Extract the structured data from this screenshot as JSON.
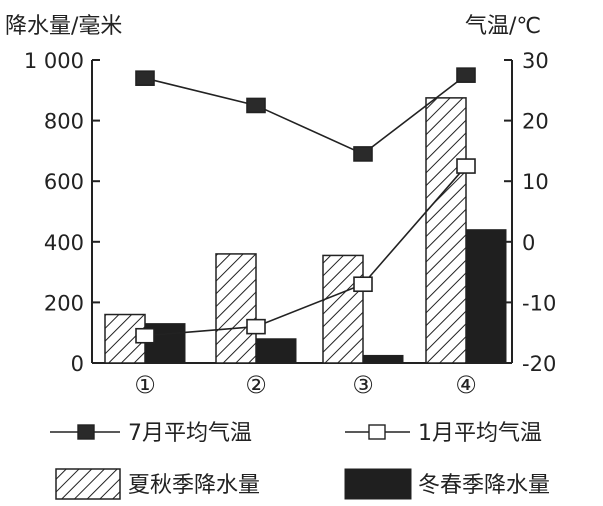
{
  "chart_data": {
    "type": "bar+line",
    "title": "",
    "ylabel_left": "降水量/毫米",
    "ylabel_right": "气温/℃",
    "categories": [
      "①",
      "②",
      "③",
      "④"
    ],
    "y_left": {
      "min": 0,
      "max": 1000,
      "ticks": [
        0,
        200,
        400,
        600,
        800,
        1000
      ],
      "tick_labels": [
        "0",
        "200",
        "400",
        "600",
        "800",
        "1 000"
      ]
    },
    "y_right": {
      "min": -20,
      "max": 30,
      "ticks": [
        -20,
        -10,
        0,
        10,
        20,
        30
      ],
      "tick_labels": [
        "-20",
        "-10",
        "0",
        "10",
        "20",
        "30"
      ]
    },
    "bars": [
      {
        "name": "夏秋季降水量",
        "pattern": "hatched",
        "values": [
          160,
          360,
          355,
          875
        ]
      },
      {
        "name": "冬春季降水量",
        "pattern": "solid",
        "values": [
          130,
          80,
          25,
          440
        ]
      }
    ],
    "lines": [
      {
        "name": "7月平均气温",
        "marker": "filled-square",
        "values": [
          27,
          22.5,
          14.5,
          27.5
        ]
      },
      {
        "name": "1月平均气温",
        "marker": "open-square",
        "values": [
          -15.5,
          -14,
          -7,
          12.5
        ]
      }
    ],
    "legend": [
      {
        "label": "7月平均气温",
        "kind": "line-filled"
      },
      {
        "label": "1月平均气温",
        "kind": "line-open"
      },
      {
        "label": "夏秋季降水量",
        "kind": "hatched"
      },
      {
        "label": "冬春季降水量",
        "kind": "solid"
      }
    ],
    "legend_position": "bottom",
    "grid": false
  },
  "colors": {
    "ink": "#222222",
    "bar_solid": "#1f1f1f",
    "background": "#ffffff"
  }
}
